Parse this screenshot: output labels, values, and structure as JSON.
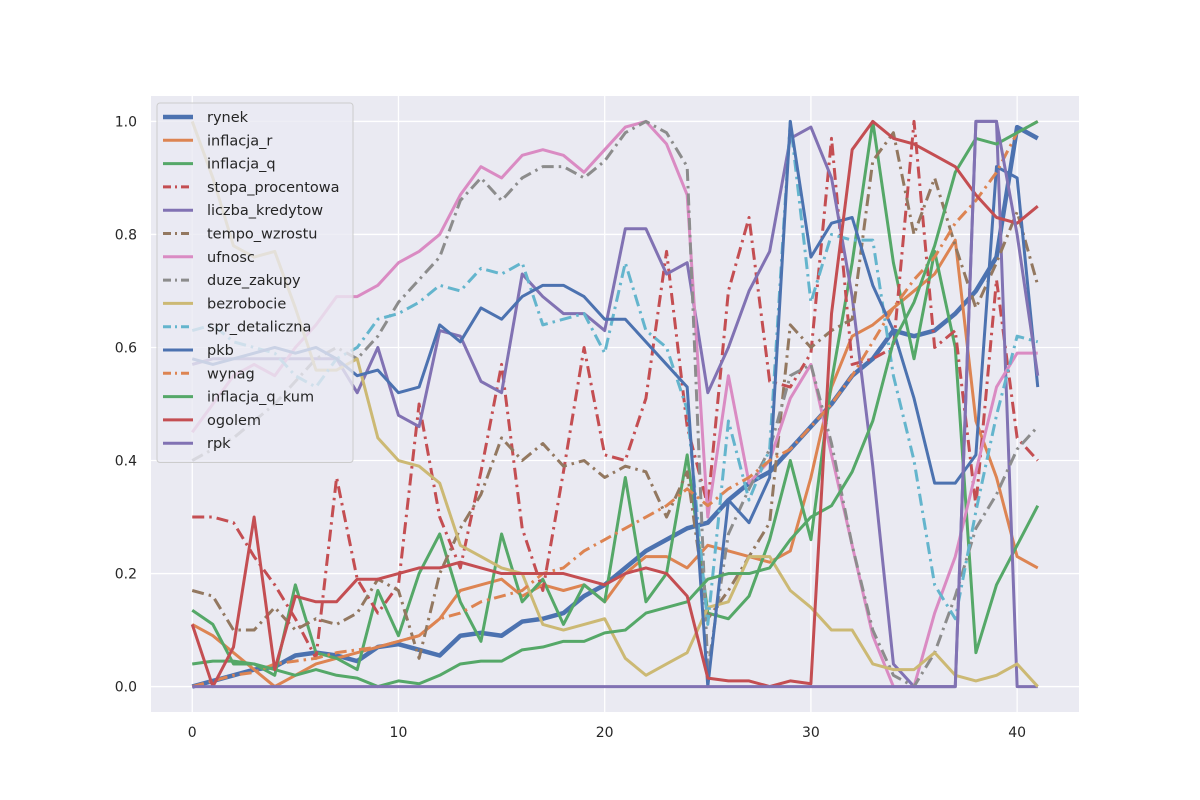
{
  "chart_data": {
    "type": "line",
    "title": "",
    "xlabel": "",
    "ylabel": "",
    "xlim": [
      -2,
      43
    ],
    "ylim": [
      -0.045,
      1.045
    ],
    "xticks": [
      0,
      10,
      20,
      30,
      40
    ],
    "yticks": [
      0.0,
      0.2,
      0.4,
      0.6,
      0.8,
      1.0
    ],
    "xtick_labels": [
      "0",
      "10",
      "20",
      "30",
      "40"
    ],
    "ytick_labels": [
      "0.0",
      "0.2",
      "0.4",
      "0.6",
      "0.8",
      "1.0"
    ],
    "grid": true,
    "legend_position": "top-left",
    "x": [
      0,
      1,
      2,
      3,
      4,
      5,
      6,
      7,
      8,
      9,
      10,
      11,
      12,
      13,
      14,
      15,
      16,
      17,
      18,
      19,
      20,
      21,
      22,
      23,
      24,
      25,
      26,
      27,
      28,
      29,
      30,
      31,
      32,
      33,
      34,
      35,
      36,
      37,
      38,
      39,
      40,
      41
    ],
    "series": [
      {
        "name": "rynek",
        "color": "#4c72b0",
        "dash": "solid",
        "width": 4.5,
        "values": [
          0.0,
          0.01,
          0.02,
          0.03,
          0.035,
          0.055,
          0.06,
          0.055,
          0.045,
          0.07,
          0.075,
          0.065,
          0.055,
          0.09,
          0.095,
          0.09,
          0.115,
          0.12,
          0.13,
          0.16,
          0.18,
          0.21,
          0.24,
          0.26,
          0.28,
          0.29,
          0.33,
          0.36,
          0.38,
          0.42,
          0.46,
          0.5,
          0.55,
          0.58,
          0.63,
          0.62,
          0.63,
          0.66,
          0.7,
          0.76,
          0.99,
          0.97
        ]
      },
      {
        "name": "inflacja_r",
        "color": "#dd8452",
        "dash": "solid",
        "width": 3,
        "values": [
          0.11,
          0.09,
          0.06,
          0.03,
          0.0,
          0.02,
          0.04,
          0.05,
          0.06,
          0.07,
          0.08,
          0.09,
          0.12,
          0.17,
          0.18,
          0.19,
          0.16,
          0.18,
          0.17,
          0.18,
          0.15,
          0.2,
          0.23,
          0.23,
          0.21,
          0.25,
          0.24,
          0.23,
          0.22,
          0.24,
          0.37,
          0.53,
          0.62,
          0.64,
          0.67,
          0.7,
          0.73,
          0.79,
          0.47,
          0.37,
          0.23,
          0.21
        ]
      },
      {
        "name": "inflacja_q",
        "color": "#55a868",
        "dash": "solid",
        "width": 3,
        "values": [
          0.135,
          0.11,
          0.04,
          0.04,
          0.02,
          0.18,
          0.06,
          0.05,
          0.03,
          0.17,
          0.09,
          0.2,
          0.27,
          0.15,
          0.08,
          0.27,
          0.15,
          0.19,
          0.11,
          0.18,
          0.15,
          0.37,
          0.15,
          0.2,
          0.41,
          0.13,
          0.12,
          0.16,
          0.26,
          0.4,
          0.26,
          0.54,
          0.75,
          1.0,
          0.75,
          0.58,
          0.77,
          0.6,
          0.06,
          0.18,
          0.25,
          0.32
        ]
      },
      {
        "name": "stopa_procentowa",
        "color": "#c44e52",
        "dash": "dashdot",
        "width": 3,
        "values": [
          0.3,
          0.3,
          0.29,
          0.23,
          0.18,
          0.12,
          0.05,
          0.37,
          0.19,
          0.13,
          0.18,
          0.5,
          0.3,
          0.21,
          0.38,
          0.57,
          0.28,
          0.17,
          0.38,
          0.6,
          0.41,
          0.4,
          0.51,
          0.77,
          0.46,
          0.32,
          0.7,
          0.83,
          0.54,
          0.53,
          0.59,
          0.97,
          0.57,
          0.58,
          0.6,
          1.0,
          0.6,
          0.63,
          0.32,
          0.72,
          0.44,
          0.4
        ]
      },
      {
        "name": "liczba_kredytow",
        "color": "#8172b3",
        "dash": "solid",
        "width": 3,
        "values": [
          0.57,
          0.58,
          0.58,
          0.58,
          0.58,
          0.58,
          0.58,
          0.58,
          0.52,
          0.6,
          0.48,
          0.46,
          0.63,
          0.62,
          0.54,
          0.52,
          0.73,
          0.69,
          0.66,
          0.66,
          0.63,
          0.81,
          0.81,
          0.73,
          0.75,
          0.52,
          0.6,
          0.7,
          0.77,
          0.97,
          0.99,
          0.9,
          0.69,
          0.39,
          0.04,
          0.0,
          0.0,
          0.0,
          1.0,
          1.0,
          0.0,
          0.0
        ]
      },
      {
        "name": "tempo_wzrostu",
        "color": "#937860",
        "dash": "dashdot",
        "width": 3,
        "values": [
          0.17,
          0.16,
          0.1,
          0.1,
          0.14,
          0.1,
          0.12,
          0.11,
          0.13,
          0.19,
          0.17,
          0.05,
          0.2,
          0.28,
          0.34,
          0.44,
          0.4,
          0.43,
          0.39,
          0.4,
          0.37,
          0.39,
          0.38,
          0.3,
          0.38,
          0.12,
          0.17,
          0.23,
          0.29,
          0.64,
          0.6,
          0.63,
          0.65,
          0.93,
          0.98,
          0.8,
          0.9,
          0.78,
          0.67,
          0.75,
          0.84,
          0.71
        ]
      },
      {
        "name": "ufnosc",
        "color": "#da8bc3",
        "dash": "solid",
        "width": 3,
        "values": [
          0.45,
          0.5,
          0.55,
          0.57,
          0.55,
          0.6,
          0.64,
          0.69,
          0.69,
          0.71,
          0.75,
          0.77,
          0.8,
          0.87,
          0.92,
          0.9,
          0.94,
          0.95,
          0.94,
          0.91,
          0.95,
          0.99,
          1.0,
          0.96,
          0.87,
          0.3,
          0.55,
          0.36,
          0.4,
          0.51,
          0.57,
          0.41,
          0.25,
          0.09,
          0.0,
          0.0,
          0.13,
          0.23,
          0.38,
          0.53,
          0.59,
          0.59
        ]
      },
      {
        "name": "duze_zakupy",
        "color": "#8c8c8c",
        "dash": "dashdot",
        "width": 3,
        "values": [
          0.4,
          0.42,
          0.44,
          0.47,
          0.5,
          0.54,
          0.58,
          0.6,
          0.58,
          0.62,
          0.68,
          0.72,
          0.76,
          0.86,
          0.9,
          0.86,
          0.9,
          0.92,
          0.92,
          0.9,
          0.93,
          0.98,
          1.0,
          0.98,
          0.92,
          0.03,
          0.27,
          0.35,
          0.42,
          0.55,
          0.57,
          0.43,
          0.25,
          0.1,
          0.02,
          0.0,
          0.06,
          0.16,
          0.28,
          0.34,
          0.42,
          0.46
        ]
      },
      {
        "name": "bezrobocie",
        "color": "#ccb974",
        "dash": "solid",
        "width": 3,
        "values": [
          1.0,
          0.9,
          0.78,
          0.76,
          0.77,
          0.67,
          0.56,
          0.56,
          0.58,
          0.44,
          0.4,
          0.39,
          0.36,
          0.25,
          0.23,
          0.21,
          0.2,
          0.11,
          0.1,
          0.11,
          0.12,
          0.05,
          0.02,
          0.04,
          0.06,
          0.14,
          0.15,
          0.23,
          0.23,
          0.17,
          0.14,
          0.1,
          0.1,
          0.04,
          0.03,
          0.03,
          0.06,
          0.02,
          0.01,
          0.02,
          0.04,
          0.0
        ]
      },
      {
        "name": "spr_detaliczna",
        "color": "#64b5cd",
        "dash": "dashdot",
        "width": 3,
        "values": [
          0.63,
          0.64,
          0.61,
          0.6,
          0.59,
          0.55,
          0.53,
          0.58,
          0.6,
          0.65,
          0.66,
          0.68,
          0.71,
          0.7,
          0.74,
          0.73,
          0.75,
          0.64,
          0.65,
          0.66,
          0.59,
          0.75,
          0.63,
          0.6,
          0.49,
          0.11,
          0.47,
          0.33,
          0.42,
          1.0,
          0.68,
          0.8,
          0.79,
          0.79,
          0.55,
          0.4,
          0.18,
          0.12,
          0.31,
          0.48,
          0.62,
          0.61
        ]
      },
      {
        "name": "pkb",
        "color": "#4c72b0",
        "dash": "solid",
        "width": 3,
        "values": [
          0.58,
          0.57,
          0.58,
          0.59,
          0.6,
          0.59,
          0.6,
          0.58,
          0.55,
          0.56,
          0.52,
          0.53,
          0.64,
          0.61,
          0.67,
          0.65,
          0.69,
          0.71,
          0.71,
          0.69,
          0.65,
          0.65,
          0.61,
          0.57,
          0.53,
          0.0,
          0.33,
          0.29,
          0.37,
          1.0,
          0.76,
          0.82,
          0.83,
          0.71,
          0.63,
          0.51,
          0.36,
          0.36,
          0.41,
          0.92,
          0.9,
          0.53
        ]
      },
      {
        "name": "wynag",
        "color": "#dd8452",
        "dash": "dashdot",
        "width": 3,
        "values": [
          0.0,
          0.01,
          0.02,
          0.025,
          0.04,
          0.045,
          0.05,
          0.06,
          0.065,
          0.07,
          0.08,
          0.09,
          0.12,
          0.13,
          0.15,
          0.16,
          0.17,
          0.2,
          0.21,
          0.24,
          0.26,
          0.28,
          0.3,
          0.32,
          0.35,
          0.32,
          0.35,
          0.37,
          0.4,
          0.42,
          0.46,
          0.5,
          0.55,
          0.61,
          0.67,
          0.72,
          0.76,
          0.82,
          0.86,
          0.91,
          0.98,
          1.0
        ]
      },
      {
        "name": "inflacja_q_kum",
        "color": "#55a868",
        "dash": "solid",
        "width": 3,
        "values": [
          0.04,
          0.045,
          0.045,
          0.04,
          0.03,
          0.02,
          0.03,
          0.02,
          0.015,
          0.0,
          0.01,
          0.005,
          0.02,
          0.04,
          0.045,
          0.045,
          0.065,
          0.07,
          0.08,
          0.08,
          0.095,
          0.1,
          0.13,
          0.14,
          0.15,
          0.19,
          0.2,
          0.2,
          0.21,
          0.26,
          0.3,
          0.32,
          0.38,
          0.47,
          0.61,
          0.68,
          0.78,
          0.91,
          0.97,
          0.96,
          0.98,
          1.0
        ]
      },
      {
        "name": "ogolem",
        "color": "#c44e52",
        "dash": "solid",
        "width": 3,
        "values": [
          0.11,
          0.0,
          0.07,
          0.3,
          0.03,
          0.16,
          0.15,
          0.15,
          0.19,
          0.19,
          0.2,
          0.21,
          0.21,
          0.22,
          0.21,
          0.2,
          0.2,
          0.2,
          0.2,
          0.19,
          0.18,
          0.2,
          0.21,
          0.2,
          0.16,
          0.015,
          0.01,
          0.01,
          0.0,
          0.01,
          0.005,
          0.66,
          0.95,
          1.0,
          0.97,
          0.96,
          0.94,
          0.92,
          0.87,
          0.83,
          0.82,
          0.85
        ]
      },
      {
        "name": "rpk",
        "color": "#8172b3",
        "dash": "solid",
        "width": 3,
        "values": [
          0.0,
          0.0,
          0.0,
          0.0,
          0.0,
          0.0,
          0.0,
          0.0,
          0.0,
          0.0,
          0.0,
          0.0,
          0.0,
          0.0,
          0.0,
          0.0,
          0.0,
          0.0,
          0.0,
          0.0,
          0.0,
          0.0,
          0.0,
          0.0,
          0.0,
          0.0,
          0.0,
          0.0,
          0.0,
          0.0,
          0.0,
          0.0,
          0.0,
          0.0,
          0.0,
          0.0,
          0.0,
          0.0,
          1.0,
          1.0,
          0.8,
          0.55
        ]
      }
    ]
  }
}
